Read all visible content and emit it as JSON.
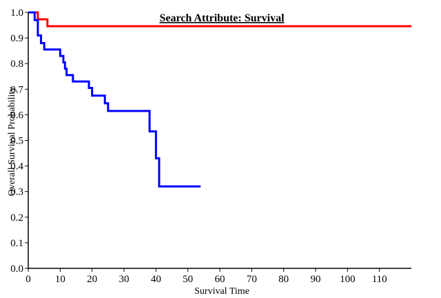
{
  "chart_data": {
    "type": "line",
    "step": true,
    "title": "Search Attribute: Survival",
    "xlabel": "Survival Time",
    "ylabel": "Overall Survival Probability",
    "xlim": [
      0,
      120
    ],
    "ylim": [
      0,
      1
    ],
    "x_ticks": [
      0,
      10,
      20,
      30,
      40,
      50,
      60,
      70,
      80,
      90,
      100,
      110
    ],
    "y_ticks": [
      "0.0",
      "0.1",
      "0.2",
      "0.3",
      "0.4",
      "0.5",
      "0.6",
      "0.7",
      "0.8",
      "0.9",
      "1.0"
    ],
    "grid": false,
    "legend": "none",
    "series": [
      {
        "color": "#ff0000",
        "x": [
          0,
          3,
          6,
          120
        ],
        "y": [
          1.0,
          0.973,
          0.946,
          0.946
        ]
      },
      {
        "color": "#0000ff",
        "x": [
          0,
          2,
          3,
          4,
          5,
          10,
          11,
          11.5,
          12,
          14,
          19,
          20,
          24,
          25,
          38,
          39,
          40,
          41,
          54
        ],
        "y": [
          1.0,
          0.97,
          0.91,
          0.88,
          0.855,
          0.83,
          0.805,
          0.78,
          0.755,
          0.73,
          0.705,
          0.675,
          0.645,
          0.615,
          0.535,
          0.535,
          0.43,
          0.32,
          0.32
        ]
      }
    ]
  }
}
